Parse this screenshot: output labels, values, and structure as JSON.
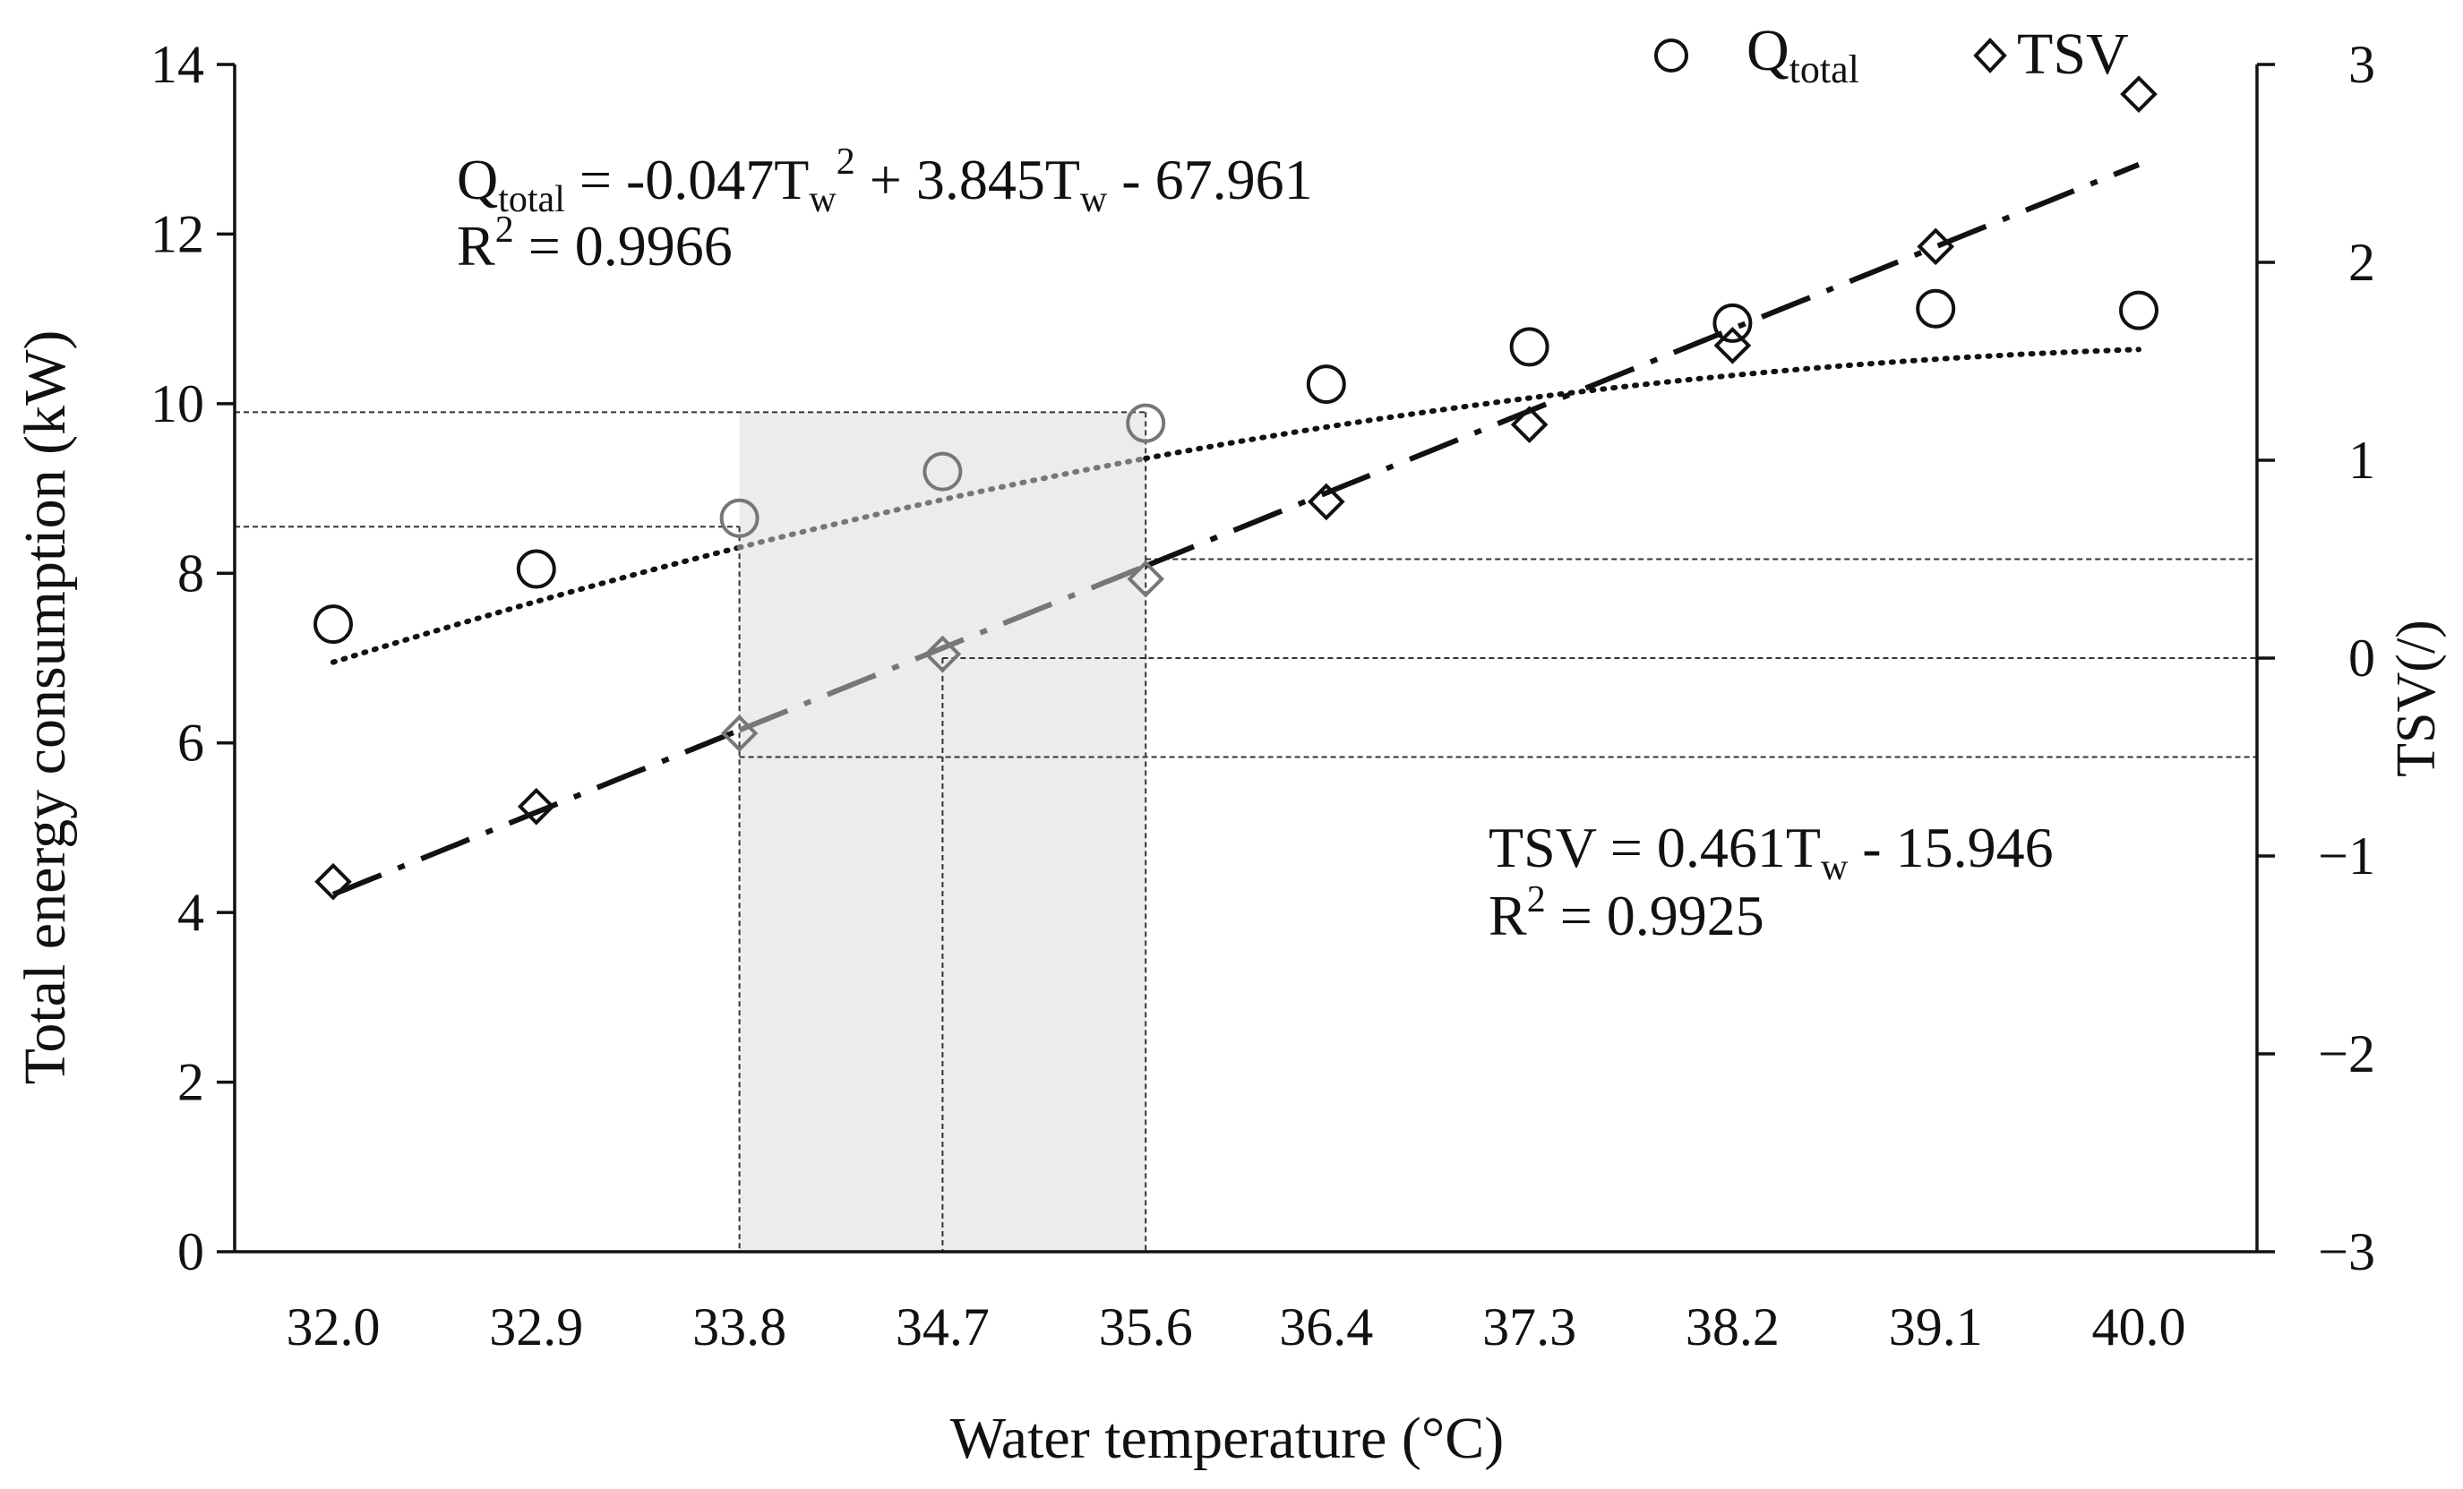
{
  "chart_data": {
    "type": "scatter",
    "x_label": "Water temperature (°C)",
    "y_label": "Total energy consumption (kW)",
    "y2_label": "TSV(/)",
    "x_categories": [
      "32.0",
      "32.9",
      "33.8",
      "34.7",
      "35.6",
      "36.4",
      "37.3",
      "38.2",
      "39.1",
      "40.0"
    ],
    "y_ticks": [
      "0",
      "2",
      "4",
      "6",
      "8",
      "10",
      "12",
      "14"
    ],
    "y_range": [
      0,
      14
    ],
    "y2_ticks": [
      "−3",
      "−2",
      "−1",
      "0",
      "1",
      "2",
      "3"
    ],
    "y2_range": [
      -3,
      3
    ],
    "series": [
      {
        "name": "Q",
        "name_sub": "total",
        "marker": "circle",
        "axis": "left",
        "values": [
          7.4,
          8.05,
          8.65,
          9.2,
          9.77,
          10.23,
          10.67,
          10.95,
          11.12,
          11.1
        ]
      },
      {
        "name": "TSV",
        "marker": "diamond",
        "axis": "right",
        "values": [
          -1.13,
          -0.75,
          -0.38,
          0.02,
          0.4,
          0.79,
          1.18,
          1.58,
          2.08,
          2.85
        ]
      }
    ],
    "trendlines": {
      "q_fit": {
        "a": -0.047,
        "b": 3.845,
        "c": -67.961,
        "style": "dotted"
      },
      "tsv_fit": {
        "slope": 0.461,
        "intercept": -15.946,
        "style": "long-dash-dot"
      }
    },
    "reference_lines": {
      "q_levels": [
        8.55,
        9.9
      ],
      "tsv_levels": [
        -0.5,
        0.0,
        0.5
      ],
      "x_verticals": [
        33.8,
        34.7,
        35.6
      ],
      "comfort_band_x": [
        33.8,
        35.6
      ]
    },
    "annotations": {
      "q_eq": {
        "q": "Q",
        "q_sub": "total",
        "mid": " = -0.047T",
        "w1": "w",
        "sup": "2",
        "mid2": " + 3.845T",
        "w2": "w",
        "tail": " - 67.961",
        "r2_pre": "R",
        "r2_sup": "2",
        "r2_val": " = 0.9966"
      },
      "tsv_eq": {
        "pre": "TSV = 0.461T",
        "w": "w",
        "tail": " - 15.946",
        "r2_pre": "R",
        "r2_sup": "2",
        "r2_val": " = 0.9925"
      }
    },
    "legend": {
      "position": "top-right",
      "q_label": "Q",
      "q_sub": "total",
      "tsv_label": "TSV"
    }
  }
}
